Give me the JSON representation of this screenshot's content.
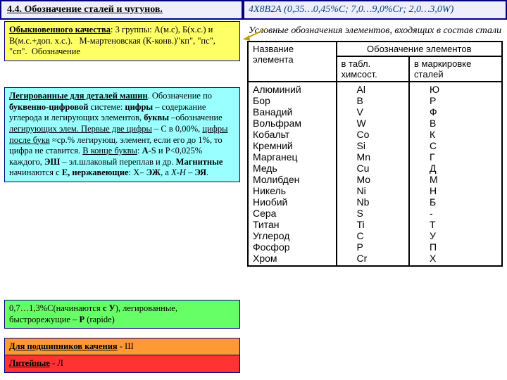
{
  "header": {
    "title": "4.4. Обозначение сталей и чугунов.",
    "formula": "4Х8В2А (0,35…0,45%С; 7,0…9,0%Cr; 2,0…3,0W)"
  },
  "left": {
    "quality": "Обыкновенного качества: 3 группы: А(м.с), Б(х.с.) и В(м.с.+доп. х.с.).   М-мартеновская (К-конв.)\"кп\", \"пс\", \"сп\".  Обозначение",
    "alloy": "Легированные для деталей машин. Обозначение по буквенно-цифровой системе: цифры – содержание углерода и легирующих элементов, буквы –обозначение легирующих элем. Первые две цифры – С в 0,00%, цифры после букв ≈ср.% легирующ. элемент, если его до 1%, то цифра не ставится. В конце буквы: А-S и P<0,025% каждого, ЭШ – эл.шлаковый переплав и др. Магнитные начинаются с Е, нержавеющие: Х– ЭЖ, а Х-Н – ЭЯ.",
    "tool": "0,7…1,3%С(начинаются с У), легированные, быстрорежущие – Р (rapide)",
    "bearing": "Для подшипников качения - Ш",
    "cast": "Литейные - Л"
  },
  "right": {
    "caption": "Условные обозначения элементов, входящих в состав стали",
    "th1": "Название элемента",
    "th2": "Обозначение элементов",
    "th2a": "в табл. химсост.",
    "th2b": "в маркировке сталей",
    "rows": [
      [
        "Алюминий",
        "Al",
        "Ю"
      ],
      [
        "Бор",
        "B",
        "Р"
      ],
      [
        "Ванадий",
        "V",
        "Ф"
      ],
      [
        "Вольфрам",
        "W",
        "В"
      ],
      [
        "Кобальт",
        "Co",
        "К"
      ],
      [
        "Кремний",
        "Si",
        "С"
      ],
      [
        "Марганец",
        "Mn",
        "Г"
      ],
      [
        "Медь",
        "Cu",
        "Д"
      ],
      [
        "Молибден",
        "Mo",
        "М"
      ],
      [
        "Никель",
        "Ni",
        "Н"
      ],
      [
        "Ниобий",
        "Nb",
        "Б"
      ],
      [
        "Сера",
        "S",
        "-"
      ],
      [
        "Титан",
        "Ti",
        "Т"
      ],
      [
        "Углерод",
        "C",
        "У"
      ],
      [
        "Фосфор",
        "P",
        "П"
      ],
      [
        "Хром",
        "Cr",
        "Х"
      ]
    ]
  },
  "colors": {
    "frame": "#000080",
    "yellow": "#ffff66",
    "cyan": "#99ffff",
    "green": "#66ff66",
    "orange": "#ff9933",
    "red": "#ff3333",
    "lime": "#ccff66"
  }
}
